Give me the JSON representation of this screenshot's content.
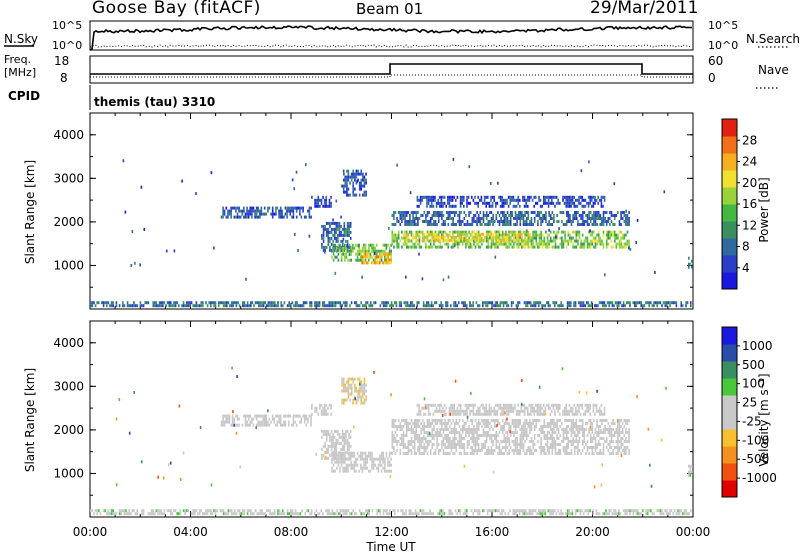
{
  "header": {
    "station": "Goose Bay (fitACF)",
    "beam": "Beam 01",
    "date": "29/Mar/2011"
  },
  "top_panels": {
    "noise_left_label": "N.Sky",
    "noise_left_ticks": [
      "10^5",
      "10^0"
    ],
    "noise_right_ticks": [
      "10^5",
      "10^0"
    ],
    "noise_right_label": "N.Search",
    "freq_label_line1": "Freq.",
    "freq_label_line2": "[MHz]",
    "freq_ticks": [
      "18",
      "8"
    ],
    "nave_ticks": [
      "60",
      "0"
    ],
    "nave_label": "Nave",
    "cpid_label": "CPID",
    "cpid_text": "themis (tau) 3310"
  },
  "chart_data": [
    {
      "type": "heatmap",
      "title": "",
      "xlabel": "",
      "ylabel": "Slant Range [km]",
      "x_tick_labels": [
        "00:00",
        "04:00",
        "08:00",
        "12:00",
        "16:00",
        "20:00",
        "00:00"
      ],
      "xlim_hours": [
        0,
        24
      ],
      "y_ticks": [
        1000,
        2000,
        3000,
        4000
      ],
      "ylim": [
        0,
        4500
      ],
      "colorbar": {
        "label": "Power [dB]",
        "ticks": [
          "28",
          "24",
          "20",
          "16",
          "12",
          "8",
          "4"
        ],
        "range": [
          0,
          30
        ],
        "colors": [
          "#1a1adc",
          "#2a3ec8",
          "#2e6a9e",
          "#3a8e60",
          "#44b840",
          "#9ad23a",
          "#f0e030",
          "#f4b020",
          "#f07018",
          "#e02010"
        ]
      },
      "regions": [
        {
          "t0": 5.2,
          "t1": 8.8,
          "r0": 2050,
          "r1": 2350,
          "level": 6
        },
        {
          "t0": 8.8,
          "t1": 9.6,
          "r0": 2350,
          "r1": 2600,
          "level": 5
        },
        {
          "t0": 9.2,
          "t1": 10.4,
          "r0": 1300,
          "r1": 2000,
          "level": 7
        },
        {
          "t0": 9.6,
          "t1": 12.0,
          "r0": 1100,
          "r1": 1500,
          "level": 14
        },
        {
          "t0": 10.8,
          "t1": 12.0,
          "r0": 1000,
          "r1": 1300,
          "level": 22
        },
        {
          "t0": 10.0,
          "t1": 11.0,
          "r0": 2600,
          "r1": 3200,
          "level": 6
        },
        {
          "t0": 12.0,
          "t1": 21.5,
          "r0": 1400,
          "r1": 1800,
          "level": 15
        },
        {
          "t0": 12.5,
          "t1": 17.5,
          "r0": 1550,
          "r1": 1750,
          "level": 20
        },
        {
          "t0": 12.0,
          "t1": 21.5,
          "r0": 1900,
          "r1": 2250,
          "level": 7
        },
        {
          "t0": 13.0,
          "t1": 20.5,
          "r0": 2300,
          "r1": 2600,
          "level": 5
        },
        {
          "t0": 0.0,
          "t1": 24.0,
          "r0": 60,
          "r1": 180,
          "level": 8
        },
        {
          "t0": 23.8,
          "t1": 24.0,
          "r0": 900,
          "r1": 1200,
          "level": 10
        }
      ]
    },
    {
      "type": "heatmap",
      "title": "",
      "xlabel": "Time UT",
      "ylabel": "Slant Range [km]",
      "x_tick_labels": [
        "00:00",
        "04:00",
        "08:00",
        "12:00",
        "16:00",
        "20:00",
        "00:00"
      ],
      "xlim_hours": [
        0,
        24
      ],
      "y_ticks": [
        1000,
        2000,
        3000,
        4000
      ],
      "ylim": [
        0,
        4500
      ],
      "colorbar": {
        "label": "Velocity [m s⁻¹]",
        "ticks": [
          "1000",
          "500",
          "100",
          "25",
          "-25",
          "-100",
          "-500",
          "-1000"
        ],
        "range": [
          -1000,
          1000
        ],
        "colors": [
          "#e00000",
          "#f05010",
          "#f49020",
          "#f8c030",
          "#c8c8c8",
          "#c8c8c8",
          "#48c838",
          "#3a8e60",
          "#2a4ea8",
          "#1a1adc"
        ]
      },
      "regions": [
        {
          "t0": 5.2,
          "t1": 8.8,
          "r0": 2050,
          "r1": 2350,
          "level": 0
        },
        {
          "t0": 8.8,
          "t1": 9.6,
          "r0": 2350,
          "r1": 2600,
          "level": 0
        },
        {
          "t0": 9.2,
          "t1": 10.4,
          "r0": 1300,
          "r1": 2000,
          "level": 0
        },
        {
          "t0": 9.6,
          "t1": 12.0,
          "r0": 1050,
          "r1": 1500,
          "level": 0
        },
        {
          "t0": 10.0,
          "t1": 11.0,
          "r0": 2600,
          "r1": 3200,
          "level": -150
        },
        {
          "t0": 12.0,
          "t1": 21.5,
          "r0": 1400,
          "r1": 2250,
          "level": 0
        },
        {
          "t0": 13.0,
          "t1": 20.5,
          "r0": 2300,
          "r1": 2600,
          "level": 0
        },
        {
          "t0": 0.0,
          "t1": 24.0,
          "r0": 60,
          "r1": 180,
          "level": 80
        },
        {
          "t0": 23.8,
          "t1": 24.0,
          "r0": 900,
          "r1": 1200,
          "level": 120
        }
      ]
    }
  ]
}
